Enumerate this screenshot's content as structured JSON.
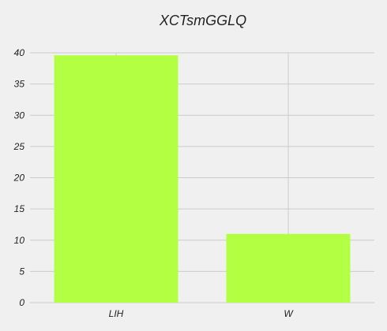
{
  "chart_data": {
    "type": "bar",
    "title": "XCTsmGGLQ",
    "xlabel": "",
    "ylabel": "",
    "categories": [
      "LIH",
      "W"
    ],
    "series": [
      {
        "values": [
          39.6,
          11.0
        ]
      }
    ],
    "ylim": [
      0,
      40
    ],
    "yticks": [
      0,
      5,
      10,
      15,
      20,
      25,
      30,
      35,
      40
    ],
    "grid": true,
    "legend": "none",
    "colors": {
      "bar": "#b3ff42",
      "background": "#f0f0f0",
      "grid": "#cbcbcb",
      "text": "#222222"
    }
  }
}
